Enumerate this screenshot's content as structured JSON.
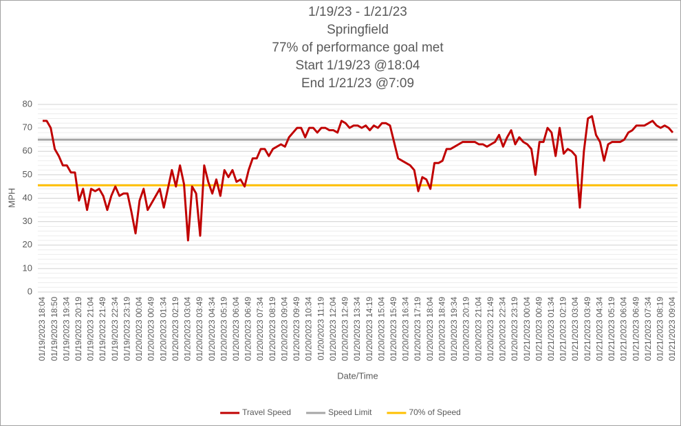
{
  "chart_data": {
    "type": "line",
    "title": [
      "1/19/23 - 1/21/23",
      "Springfield",
      "77% of performance goal met",
      "Start 1/19/23 @18:04",
      "End 1/21/23 @7:09"
    ],
    "x_label": "Date/Time",
    "y_label": "MPH",
    "categories": [
      "01/19/2023 18:04",
      null,
      null,
      "01/19/2023 18:50",
      null,
      null,
      "01/19/2023 19:34",
      null,
      null,
      "01/19/2023 20:19",
      null,
      null,
      "01/19/2023 21:04",
      null,
      null,
      "01/19/2023 21:49",
      null,
      null,
      "01/19/2023 22:34",
      null,
      null,
      "01/19/2023 23:19",
      null,
      null,
      "01/20/2023 00:04",
      null,
      null,
      "01/20/2023 00:49",
      null,
      null,
      "01/20/2023 01:34",
      null,
      null,
      "01/20/2023 02:19",
      null,
      null,
      "01/20/2023 03:04",
      null,
      null,
      "01/20/2023 03:49",
      null,
      null,
      "01/20/2023 04:34",
      null,
      null,
      "01/20/2023 05:19",
      null,
      null,
      "01/20/2023 06:04",
      null,
      null,
      "01/20/2023 06:49",
      null,
      null,
      "01/20/2023 07:34",
      null,
      null,
      "01/20/2023 08:19",
      null,
      null,
      "01/20/2023 09:04",
      null,
      null,
      "01/20/2023 09:49",
      null,
      null,
      "01/20/2023 10:34",
      null,
      null,
      "01/20/2023 11:19",
      null,
      null,
      "01/20/2023 12:04",
      null,
      null,
      "01/20/2023 12:49",
      null,
      null,
      "01/20/2023 13:34",
      null,
      null,
      "01/20/2023 14:19",
      null,
      null,
      "01/20/2023 15:04",
      null,
      null,
      "01/20/2023 15:49",
      null,
      null,
      "01/20/2023 16:34",
      null,
      null,
      "01/20/2023 17:19",
      null,
      null,
      "01/20/2023 18:04",
      null,
      null,
      "01/20/2023 18:49",
      null,
      null,
      "01/20/2023 19:34",
      null,
      null,
      "01/20/2023 20:19",
      null,
      null,
      "01/20/2023 21:04",
      null,
      null,
      "01/20/2023 21:49",
      null,
      null,
      "01/20/2023 22:34",
      null,
      null,
      "01/20/2023 23:19",
      null,
      null,
      "01/21/2023 00:04",
      null,
      null,
      "01/21/2023 00:49",
      null,
      null,
      "01/21/2023 01:34",
      null,
      null,
      "01/21/2023 02:19",
      null,
      null,
      "01/21/2023 03:04",
      null,
      null,
      "01/21/2023 03:49",
      null,
      null,
      "01/21/2023 04:34",
      null,
      null,
      "01/21/2023 05:19",
      null,
      null,
      "01/21/2023 06:04",
      null,
      null,
      "01/21/2023 06:49",
      null,
      null,
      "01/21/2023 07:34",
      null,
      null,
      "01/21/2023 08:19",
      null,
      null,
      "01/21/2023 09:04"
    ],
    "series": [
      {
        "name": "Travel Speed",
        "color": "#c00000",
        "values": [
          73,
          73,
          70,
          61,
          58,
          54,
          54,
          51,
          51,
          39,
          44,
          35,
          44,
          43,
          44,
          41,
          35,
          41,
          45,
          41,
          42,
          42,
          34,
          25,
          39,
          44,
          35,
          38,
          41,
          44,
          36,
          44,
          52,
          45,
          54,
          46,
          22,
          45,
          42,
          24,
          54,
          47,
          42,
          48,
          41,
          52,
          49,
          52,
          47,
          48,
          45,
          52,
          57,
          57,
          61,
          61,
          58,
          61,
          62,
          63,
          62,
          66,
          68,
          70,
          70,
          66,
          70,
          70,
          68,
          70,
          70,
          69,
          69,
          68,
          73,
          72,
          70,
          71,
          71,
          70,
          71,
          69,
          71,
          70,
          72,
          72,
          71,
          64,
          57,
          56,
          55,
          54,
          52,
          43,
          49,
          48,
          44,
          55,
          55,
          56,
          61,
          61,
          62,
          63,
          64,
          64,
          64,
          64,
          63,
          63,
          62,
          63,
          64,
          67,
          62,
          66,
          69,
          63,
          66,
          64,
          63,
          61,
          50,
          64,
          64,
          70,
          68,
          58,
          70,
          59,
          61,
          60,
          58,
          36,
          60,
          74,
          75,
          67,
          64,
          56,
          63,
          64,
          64,
          64,
          65,
          68,
          69,
          71,
          71,
          71,
          72,
          73,
          71,
          70,
          71,
          70,
          68
        ]
      }
    ],
    "reference_lines": [
      {
        "name": "Speed Limit",
        "color": "#a6a6a6",
        "value": 65
      },
      {
        "name": "70% of Speed",
        "color": "#ffc000",
        "value": 45.5
      }
    ],
    "ylim": [
      0,
      80
    ],
    "yticks": [
      0,
      10,
      20,
      30,
      40,
      50,
      60,
      70,
      80
    ],
    "grid": true,
    "minor_grid": true,
    "legend": "bottom"
  }
}
